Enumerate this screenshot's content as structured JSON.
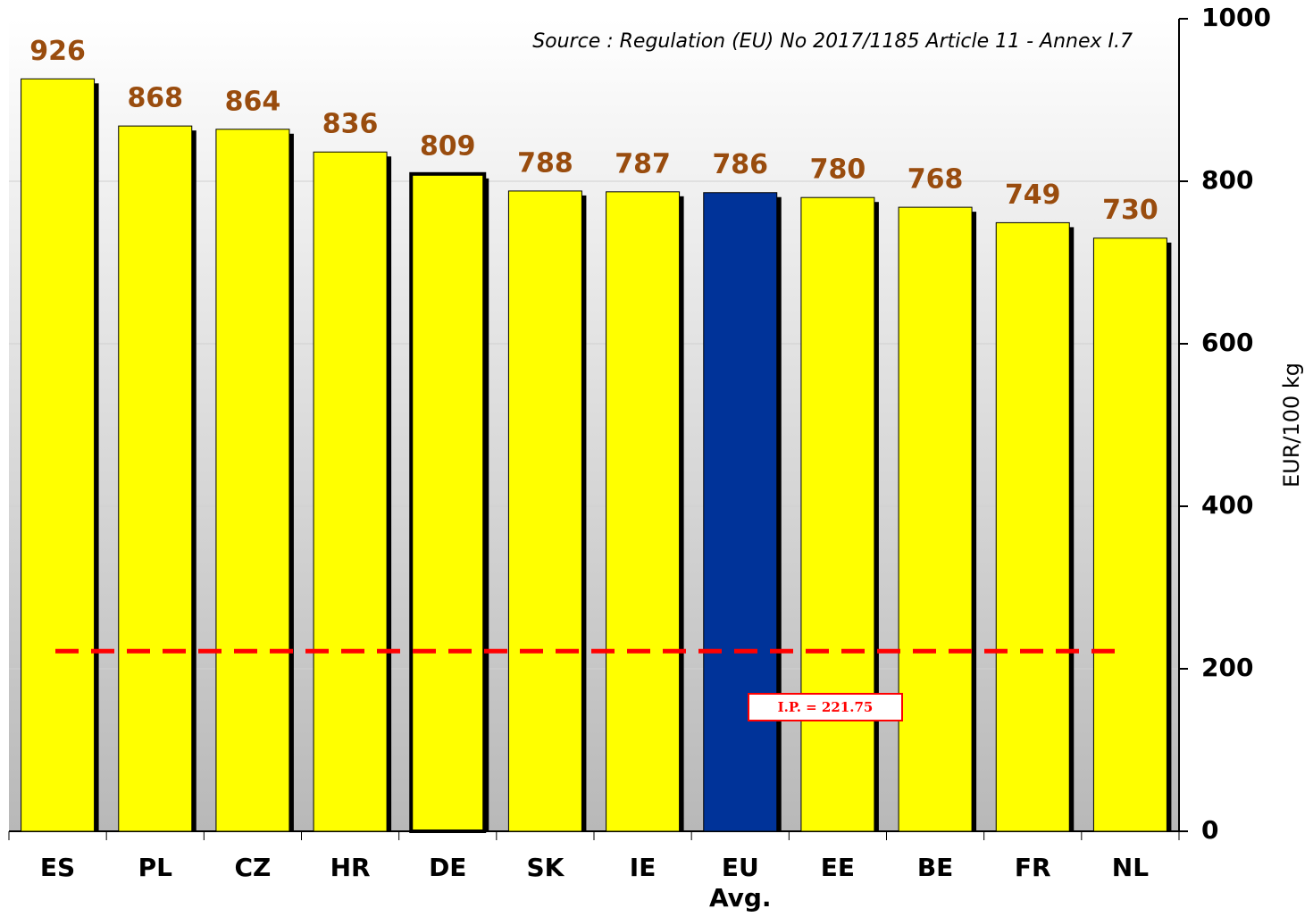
{
  "chart_data": {
    "type": "bar",
    "source": "Source : Regulation  (EU) No 2017/1185 Article 11 - Annex I.7",
    "y_label": "EUR/100 kg",
    "categories": [
      "ES",
      "PL",
      "CZ",
      "HR",
      "DE",
      "SK",
      "IE",
      "EU Avg.",
      "EE",
      "BE",
      "FR",
      "NL"
    ],
    "values": [
      926,
      868,
      864,
      836,
      809,
      788,
      787,
      786,
      780,
      768,
      749,
      730
    ],
    "colors": [
      "#ffff00",
      "#ffff00",
      "#ffff00",
      "#ffff00",
      "#ffff00",
      "#ffff00",
      "#ffff00",
      "#003399",
      "#ffff00",
      "#ffff00",
      "#ffff00",
      "#ffff00"
    ],
    "ylim": [
      0,
      1000
    ],
    "yticks": [
      0,
      200,
      400,
      600,
      800,
      1000
    ],
    "grid": true,
    "reference_line": {
      "value": 221.75,
      "label": "I.P. = 221.75",
      "color": "#ff0000"
    }
  }
}
